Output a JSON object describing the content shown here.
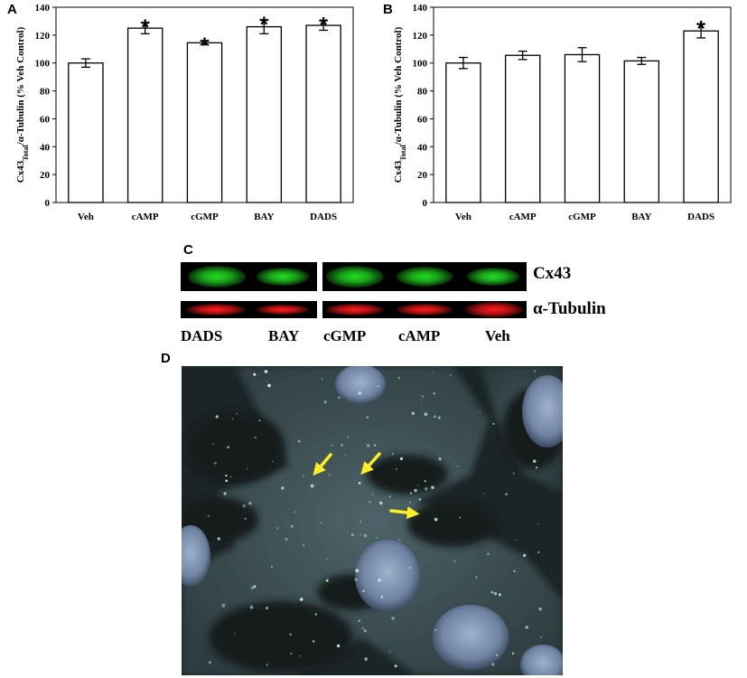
{
  "panels": {
    "a": "A",
    "b": "B",
    "c": "C",
    "d": "D"
  },
  "chart_data": [
    {
      "id": "A",
      "type": "bar",
      "categories": [
        "Veh",
        "cAMP",
        "cGMP",
        "BAY",
        "DADS"
      ],
      "values": [
        100,
        125,
        114.5,
        126,
        127
      ],
      "errors": [
        3,
        4,
        1.5,
        5,
        3.5
      ],
      "significant": [
        false,
        true,
        true,
        true,
        true
      ],
      "marker": "*",
      "ylim": [
        0,
        140
      ],
      "yticks": [
        0,
        20,
        40,
        60,
        80,
        100,
        120,
        140
      ],
      "ylabel_main": "Cx43",
      "ylabel_sub": "Total",
      "ylabel_rest": "/α-Tubulin (% Veh Control)",
      "bar_color": "#ffffff",
      "grid": false
    },
    {
      "id": "B",
      "type": "bar",
      "categories": [
        "Veh",
        "cAMP",
        "cGMP",
        "BAY",
        "DADS"
      ],
      "values": [
        100,
        105.5,
        106,
        101.5,
        123
      ],
      "errors": [
        4,
        3,
        5,
        2.5,
        5
      ],
      "significant": [
        false,
        false,
        false,
        false,
        true
      ],
      "marker": "*",
      "ylim": [
        0,
        140
      ],
      "yticks": [
        0,
        20,
        40,
        60,
        80,
        100,
        120,
        140
      ],
      "ylabel_main": "Cx43",
      "ylabel_sub": "Total",
      "ylabel_rest": "/α-Tubulin (% Veh Control)",
      "bar_color": "#ffffff",
      "grid": false
    }
  ],
  "blot": {
    "row1_label": "Cx43",
    "row2_label": "α-Tubulin",
    "lanes": [
      "DADS",
      "BAY",
      "cGMP",
      "cAMP",
      "Veh"
    ],
    "row1_color": "#22dd22",
    "row2_color": "#ff1a1a"
  },
  "micrograph": {
    "background": "#1f2a2e",
    "arrow_color": "#ffee22"
  }
}
